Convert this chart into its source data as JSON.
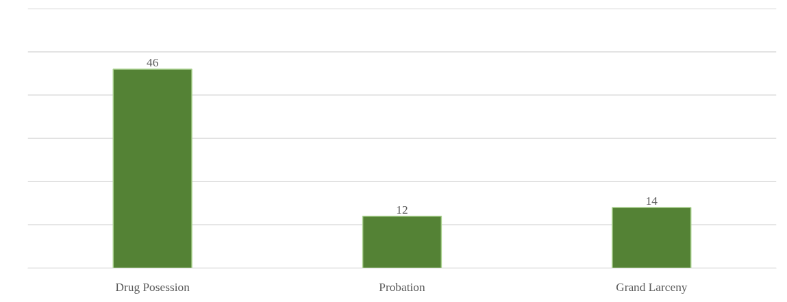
{
  "chart_data": {
    "type": "bar",
    "categories": [
      "Drug Posession",
      "Probation",
      "Grand Larceny"
    ],
    "values": [
      46,
      12,
      14
    ],
    "color": "#548235",
    "data_labels": true,
    "ylim": [
      0,
      60
    ],
    "yticks": [
      {
        "value": 0,
        "label": null
      },
      {
        "value": 10,
        "label": null
      },
      {
        "value": 20,
        "label": null
      },
      {
        "value": 30,
        "label": null
      },
      {
        "value": 40,
        "label": null
      },
      {
        "value": 50,
        "label": null
      },
      {
        "value": 60,
        "label": null
      }
    ],
    "grid": "y",
    "tick_labels": "x"
  }
}
